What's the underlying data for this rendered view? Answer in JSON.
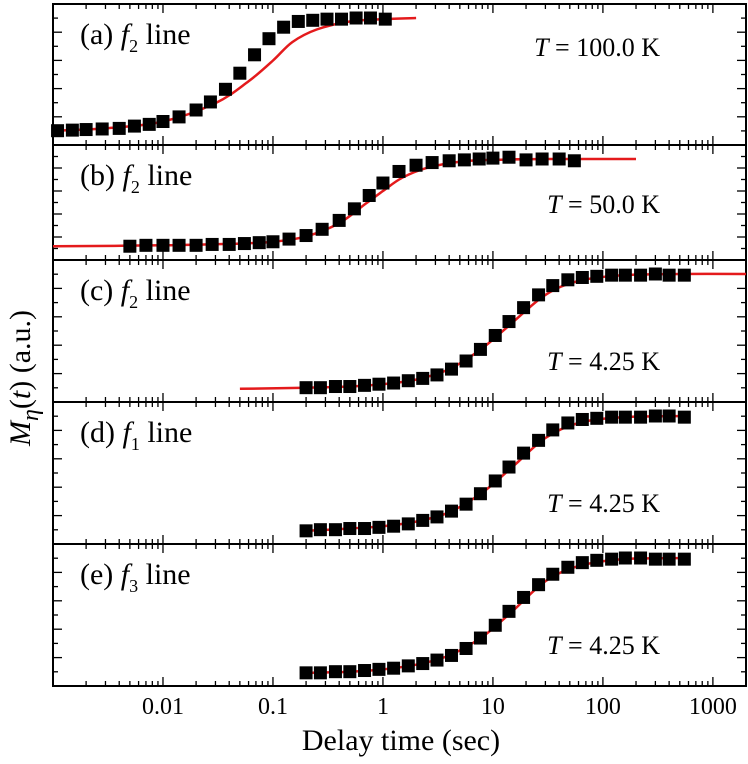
{
  "chart_data": {
    "type": "scatter",
    "layout": "five vertically stacked panels sharing a logarithmic x axis",
    "xlabel": "Delay time (sec)",
    "ylabel": "M_η(t) (a.u.)",
    "xscale": "log",
    "xlim": [
      0.001,
      2000
    ],
    "xticks": [
      0.01,
      0.1,
      1,
      10,
      100,
      1000
    ],
    "xticklabels": [
      "0.01",
      "0.1",
      "1",
      "10",
      "100",
      "1000"
    ],
    "marker": "filled black squares",
    "fit_color": "#e41a1c",
    "marker_color": "#000000",
    "yticks_labeled": false,
    "panels": [
      {
        "label": "(a)",
        "line_label": "f2 line",
        "line_symbol": "f",
        "line_subscript": "2",
        "line_word": "line",
        "temperature_text": "T = 100.0 K",
        "temperature_symbol": "T",
        "temperature_value": "= 100.0 K",
        "series": [
          {
            "type": "points",
            "x": [
              0.0011,
              0.0015,
              0.002,
              0.0028,
              0.004,
              0.0055,
              0.0075,
              0.01,
              0.014,
              0.02,
              0.027,
              0.037,
              0.05,
              0.068,
              0.092,
              0.125,
              0.17,
              0.23,
              0.31,
              0.42,
              0.57,
              0.77,
              1.05
            ],
            "y": [
              0.02,
              0.025,
              0.03,
              0.035,
              0.04,
              0.06,
              0.075,
              0.1,
              0.14,
              0.2,
              0.27,
              0.38,
              0.52,
              0.68,
              0.82,
              0.92,
              0.97,
              0.98,
              0.99,
              0.99,
              1.0,
              1.0,
              0.99
            ]
          },
          {
            "type": "fit",
            "x": [
              0.001,
              0.003,
              0.01,
              0.03,
              0.06,
              0.1,
              0.15,
              0.25,
              0.5,
              1,
              2
            ],
            "y": [
              0.02,
              0.04,
              0.1,
              0.26,
              0.45,
              0.63,
              0.79,
              0.9,
              0.97,
              0.99,
              1.0
            ]
          }
        ]
      },
      {
        "label": "(b)",
        "line_label": "f2 line",
        "line_symbol": "f",
        "line_subscript": "2",
        "line_word": "line",
        "temperature_text": "T = 50.0 K",
        "temperature_symbol": "T",
        "temperature_value": "= 50.0 K",
        "series": [
          {
            "type": "points",
            "x": [
              0.005,
              0.007,
              0.01,
              0.014,
              0.02,
              0.028,
              0.04,
              0.055,
              0.075,
              0.1,
              0.14,
              0.2,
              0.28,
              0.4,
              0.55,
              0.75,
              1.0,
              1.4,
              2.0,
              2.8,
              4,
              5.5,
              7.5,
              10,
              14,
              20,
              28,
              40,
              55
            ],
            "y": [
              0.02,
              0.03,
              0.03,
              0.03,
              0.03,
              0.04,
              0.04,
              0.05,
              0.06,
              0.07,
              0.1,
              0.14,
              0.21,
              0.31,
              0.44,
              0.59,
              0.73,
              0.86,
              0.93,
              0.96,
              0.98,
              0.99,
              1.0,
              1.01,
              1.02,
              0.99,
              1.0,
              1.0,
              0.98
            ]
          },
          {
            "type": "fit",
            "x": [
              0.001,
              0.01,
              0.05,
              0.1,
              0.2,
              0.4,
              0.7,
              1,
              1.5,
              2.5,
              5,
              10,
              30,
              100,
              200
            ],
            "y": [
              0.02,
              0.03,
              0.05,
              0.07,
              0.13,
              0.28,
              0.5,
              0.64,
              0.79,
              0.9,
              0.97,
              0.99,
              1.0,
              1.0,
              1.0
            ]
          }
        ]
      },
      {
        "label": "(c)",
        "line_label": "f2 line",
        "line_symbol": "f",
        "line_subscript": "2",
        "line_word": "line",
        "temperature_text": "T = 4.25 K",
        "temperature_symbol": "T",
        "temperature_value": "= 4.25 K",
        "series": [
          {
            "type": "points",
            "x": [
              0.2,
              0.27,
              0.37,
              0.5,
              0.68,
              0.92,
              1.25,
              1.7,
              2.3,
              3.1,
              4.2,
              5.7,
              7.7,
              10.5,
              14,
              19,
              26,
              35,
              48,
              65,
              88,
              120,
              160,
              220,
              300,
              400,
              550
            ],
            "y": [
              0.02,
              0.02,
              0.03,
              0.03,
              0.04,
              0.05,
              0.06,
              0.08,
              0.1,
              0.13,
              0.18,
              0.25,
              0.35,
              0.47,
              0.59,
              0.71,
              0.82,
              0.9,
              0.95,
              0.97,
              0.98,
              0.99,
              0.99,
              0.99,
              1.0,
              0.99,
              0.99
            ]
          },
          {
            "type": "fit",
            "x": [
              0.05,
              0.2,
              0.5,
              1,
              2,
              4,
              8,
              15,
              30,
              60,
              150,
              500,
              2000
            ],
            "y": [
              0.01,
              0.02,
              0.03,
              0.05,
              0.09,
              0.18,
              0.36,
              0.58,
              0.82,
              0.94,
              0.99,
              1.0,
              1.0
            ]
          }
        ]
      },
      {
        "label": "(d)",
        "line_label": "f1 line",
        "line_symbol": "f",
        "line_subscript": "1",
        "line_word": "line",
        "temperature_text": "T = 4.25 K",
        "temperature_symbol": "T",
        "temperature_value": "= 4.25 K",
        "series": [
          {
            "type": "points",
            "x": [
              0.2,
              0.27,
              0.37,
              0.5,
              0.68,
              0.92,
              1.25,
              1.7,
              2.3,
              3.1,
              4.2,
              5.7,
              7.7,
              10.5,
              14,
              19,
              26,
              35,
              48,
              65,
              88,
              120,
              160,
              220,
              300,
              400,
              550
            ],
            "y": [
              0.01,
              0.02,
              0.02,
              0.03,
              0.03,
              0.04,
              0.05,
              0.07,
              0.1,
              0.13,
              0.18,
              0.24,
              0.33,
              0.44,
              0.56,
              0.68,
              0.79,
              0.88,
              0.94,
              0.97,
              0.98,
              0.99,
              0.99,
              0.99,
              1.0,
              1.0,
              0.99
            ]
          },
          {
            "type": "fit",
            "x": [
              0.2,
              0.5,
              1,
              2,
              4,
              8,
              15,
              30,
              60,
              150,
              600
            ],
            "y": [
              0.01,
              0.03,
              0.05,
              0.09,
              0.17,
              0.34,
              0.56,
              0.81,
              0.94,
              0.99,
              1.0
            ]
          }
        ]
      },
      {
        "label": "(e)",
        "line_label": "f3 line",
        "line_symbol": "f",
        "line_subscript": "3",
        "line_word": "line",
        "temperature_text": "T = 4.25 K",
        "temperature_symbol": "T",
        "temperature_value": "= 4.25 K",
        "series": [
          {
            "type": "points",
            "x": [
              0.2,
              0.27,
              0.37,
              0.5,
              0.68,
              0.92,
              1.25,
              1.7,
              2.3,
              3.1,
              4.2,
              5.7,
              7.7,
              10.5,
              14,
              19,
              26,
              35,
              48,
              65,
              88,
              120,
              160,
              220,
              300,
              400,
              550
            ],
            "y": [
              0.01,
              0.01,
              0.02,
              0.02,
              0.03,
              0.04,
              0.05,
              0.07,
              0.09,
              0.12,
              0.16,
              0.22,
              0.31,
              0.42,
              0.54,
              0.66,
              0.77,
              0.86,
              0.92,
              0.96,
              0.98,
              0.99,
              1.0,
              1.0,
              0.99,
              0.99,
              0.99
            ]
          },
          {
            "type": "fit",
            "x": [
              0.2,
              0.5,
              1,
              2,
              4,
              8,
              15,
              30,
              60,
              150,
              600
            ],
            "y": [
              0.01,
              0.02,
              0.04,
              0.08,
              0.16,
              0.32,
              0.54,
              0.8,
              0.93,
              0.99,
              1.0
            ]
          }
        ]
      }
    ]
  }
}
